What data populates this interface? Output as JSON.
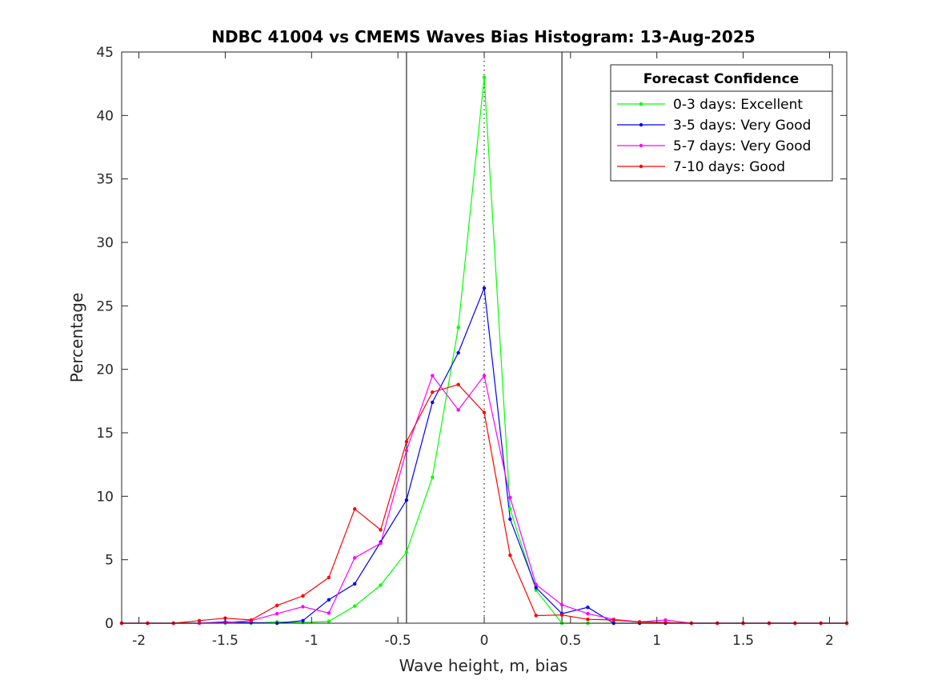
{
  "chart_data": {
    "type": "line",
    "title": "NDBC 41004 vs CMEMS Waves Bias Histogram: 13-Aug-2025",
    "xlabel": "Wave height, m, bias",
    "ylabel": "Percentage",
    "xlim": [
      -2.1,
      2.1
    ],
    "ylim": [
      0,
      45
    ],
    "xticks": [
      -2,
      -1.5,
      -1,
      -0.5,
      0,
      0.5,
      1,
      1.5,
      2
    ],
    "xtick_labels": [
      "-2",
      "-1.5",
      "-1",
      "-0.5",
      "0",
      "0.5",
      "1",
      "1.5",
      "2"
    ],
    "yticks": [
      0,
      5,
      10,
      15,
      20,
      25,
      30,
      35,
      40,
      45
    ],
    "ytick_labels": [
      "0",
      "5",
      "10",
      "15",
      "20",
      "25",
      "30",
      "35",
      "40",
      "45"
    ],
    "grid": false,
    "legend": {
      "title": "Forecast Confidence",
      "position": "top-right"
    },
    "reference_lines": [
      {
        "x": -0.45,
        "style": "solid",
        "color": "#000000"
      },
      {
        "x": 0,
        "style": "dotted",
        "color": "#000000"
      },
      {
        "x": 0.45,
        "style": "solid",
        "color": "#000000"
      }
    ],
    "series": [
      {
        "name": "0-3 days: Excellent",
        "color": "#00ff00",
        "points": [
          [
            -2.1,
            0
          ],
          [
            -1.95,
            0
          ],
          [
            -1.8,
            0
          ],
          [
            -1.65,
            0
          ],
          [
            -1.5,
            0
          ],
          [
            -1.35,
            0
          ],
          [
            -1.2,
            0.1
          ],
          [
            -1.05,
            0.05
          ],
          [
            -0.9,
            0.15
          ],
          [
            -0.75,
            1.35
          ],
          [
            -0.6,
            3.0
          ],
          [
            -0.45,
            5.6
          ],
          [
            -0.3,
            11.5
          ],
          [
            -0.15,
            23.3
          ],
          [
            0,
            43.0
          ],
          [
            0.15,
            9.0
          ],
          [
            0.3,
            2.6
          ],
          [
            0.45,
            0
          ],
          [
            0.6,
            0
          ],
          [
            0.75,
            0
          ],
          [
            0.9,
            0
          ],
          [
            1.05,
            0
          ],
          [
            1.2,
            0
          ],
          [
            1.35,
            0
          ],
          [
            1.5,
            0
          ],
          [
            1.65,
            0
          ],
          [
            1.8,
            0
          ],
          [
            1.95,
            0
          ],
          [
            2.1,
            0
          ]
        ]
      },
      {
        "name": "3-5 days: Very Good",
        "color": "#0000ff",
        "points": [
          [
            -2.1,
            0
          ],
          [
            -1.95,
            0
          ],
          [
            -1.8,
            0
          ],
          [
            -1.65,
            0
          ],
          [
            -1.5,
            0.1
          ],
          [
            -1.35,
            0.05
          ],
          [
            -1.2,
            0
          ],
          [
            -1.05,
            0.2
          ],
          [
            -0.9,
            1.85
          ],
          [
            -0.75,
            3.1
          ],
          [
            -0.6,
            6.4
          ],
          [
            -0.45,
            9.7
          ],
          [
            -0.3,
            17.4
          ],
          [
            -0.15,
            21.3
          ],
          [
            0,
            26.4
          ],
          [
            0.15,
            8.2
          ],
          [
            0.3,
            2.8
          ],
          [
            0.45,
            0.75
          ],
          [
            0.6,
            1.25
          ],
          [
            0.75,
            0
          ],
          [
            0.9,
            0
          ],
          [
            1.05,
            0
          ],
          [
            1.2,
            0
          ],
          [
            1.35,
            0
          ],
          [
            1.5,
            0
          ],
          [
            1.65,
            0
          ],
          [
            1.8,
            0
          ],
          [
            1.95,
            0
          ],
          [
            2.1,
            0
          ]
        ]
      },
      {
        "name": "5-7 days: Very Good",
        "color": "#ff00ff",
        "points": [
          [
            -2.1,
            0
          ],
          [
            -1.95,
            0
          ],
          [
            -1.8,
            0
          ],
          [
            -1.65,
            0
          ],
          [
            -1.5,
            0.05
          ],
          [
            -1.35,
            0.2
          ],
          [
            -1.2,
            0.75
          ],
          [
            -1.05,
            1.3
          ],
          [
            -0.9,
            0.8
          ],
          [
            -0.75,
            5.15
          ],
          [
            -0.6,
            6.3
          ],
          [
            -0.45,
            13.6
          ],
          [
            -0.3,
            19.5
          ],
          [
            -0.15,
            16.8
          ],
          [
            0,
            19.5
          ],
          [
            0.15,
            9.9
          ],
          [
            0.3,
            3.05
          ],
          [
            0.45,
            1.45
          ],
          [
            0.6,
            0.75
          ],
          [
            0.75,
            0.3
          ],
          [
            0.9,
            0.1
          ],
          [
            1.05,
            0.25
          ],
          [
            1.2,
            0
          ],
          [
            1.35,
            0
          ],
          [
            1.5,
            0
          ],
          [
            1.65,
            0
          ],
          [
            1.8,
            0
          ],
          [
            1.95,
            0
          ],
          [
            2.1,
            0
          ]
        ]
      },
      {
        "name": "7-10 days: Good",
        "color": "#ff0000",
        "points": [
          [
            -2.1,
            0
          ],
          [
            -1.95,
            0
          ],
          [
            -1.8,
            0
          ],
          [
            -1.65,
            0.2
          ],
          [
            -1.5,
            0.4
          ],
          [
            -1.35,
            0.25
          ],
          [
            -1.2,
            1.4
          ],
          [
            -1.05,
            2.15
          ],
          [
            -0.9,
            3.6
          ],
          [
            -0.75,
            9.0
          ],
          [
            -0.6,
            7.35
          ],
          [
            -0.45,
            14.3
          ],
          [
            -0.3,
            18.2
          ],
          [
            -0.15,
            18.8
          ],
          [
            0,
            16.6
          ],
          [
            0.15,
            5.35
          ],
          [
            0.3,
            0.6
          ],
          [
            0.45,
            0.65
          ],
          [
            0.6,
            0.3
          ],
          [
            0.75,
            0.25
          ],
          [
            0.9,
            0.1
          ],
          [
            1.05,
            0.05
          ],
          [
            1.2,
            0
          ],
          [
            1.35,
            0
          ],
          [
            1.5,
            0
          ],
          [
            1.65,
            0
          ],
          [
            1.8,
            0
          ],
          [
            1.95,
            0
          ],
          [
            2.1,
            0
          ]
        ]
      }
    ]
  }
}
